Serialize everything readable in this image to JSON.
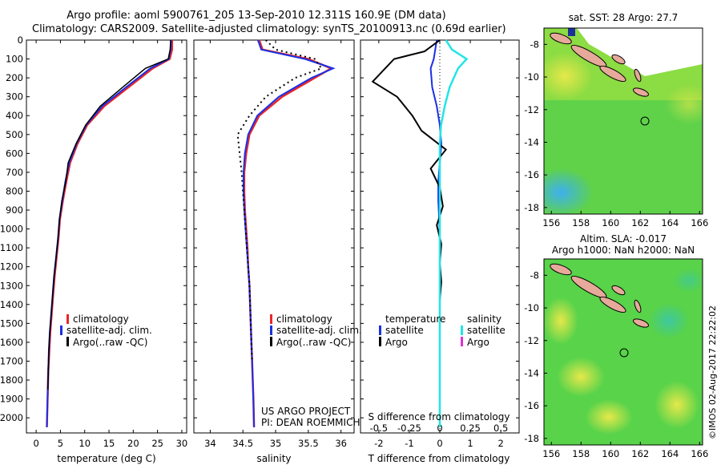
{
  "title_line1": "Argo profile: aoml 5900761_205 13-Sep-2010 12.311S 160.9E (DM data)",
  "title_line2": "Climatology: CARS2009. Satellite-adjusted climatology: synTS_20100913.nc (0.69d earlier)",
  "colors": {
    "climatology": "#e8262b",
    "satellite": "#1a2fe8",
    "argo": "#000000",
    "sal_satellite": "#22e5e5",
    "sal_argo": "#e032d0"
  },
  "depth_ticks": [
    "0",
    "100",
    "200",
    "300",
    "400",
    "500",
    "600",
    "700",
    "800",
    "900",
    "1000",
    "1100",
    "1200",
    "1300",
    "1400",
    "1500",
    "1600",
    "1700",
    "1800",
    "1900",
    "2000"
  ],
  "panel1": {
    "xlabel": "temperature (deg C)",
    "xticks": [
      "0",
      "5",
      "10",
      "15",
      "20",
      "25",
      "30"
    ],
    "legend": [
      "climatology",
      "satellite-adj. clim.",
      "Argo(..raw -QC)"
    ]
  },
  "panel2": {
    "xlabel": "salinity",
    "xticks": [
      "34",
      "34.5",
      "35",
      "35.5",
      "36"
    ],
    "legend": [
      "climatology",
      "satellite-adj. clim.",
      "Argo(..raw -QC)"
    ],
    "note1": "US ARGO PROJECT",
    "note2": "PI: DEAN ROEMMICH"
  },
  "panel3": {
    "xlabel": "T difference from climatology",
    "top_label": "S difference from climatology",
    "xticks": [
      "-2",
      "-1",
      "0",
      "1",
      "2"
    ],
    "sticks": [
      "-0.5",
      "-0.25",
      "0",
      "0.25",
      "0.5"
    ],
    "legend_t_head": "temperature",
    "legend_s_head": "salinity",
    "legend_t": [
      "satellite",
      "Argo"
    ],
    "legend_s": [
      "satellite",
      "Argo"
    ]
  },
  "map1": {
    "title": "sat. SST: 28 Argo: 27.7"
  },
  "map2": {
    "title1": "Altim. SLA: -0.017",
    "title2": "Argo h1000: NaN h2000: NaN"
  },
  "map_xticks": [
    "156",
    "158",
    "160",
    "162",
    "164",
    "166"
  ],
  "map_yticks": [
    "-8",
    "-10",
    "-12",
    "-14",
    "-16",
    "-18"
  ],
  "footer": "©IMOS 02-Aug-2017 22:22:02",
  "chart_data": [
    {
      "type": "line",
      "xlabel": "temperature (deg C)",
      "ylabel": "",
      "xlim": [
        -2,
        31
      ],
      "ylim": [
        2080,
        0
      ],
      "series": [
        {
          "name": "climatology",
          "x": [
            28,
            28,
            27.5,
            24,
            19,
            14,
            10.5,
            8.5,
            7,
            6.2,
            5.5,
            4.9,
            4.6,
            4.2,
            3.8,
            3.5,
            3.2,
            2.9,
            2.7,
            2.5,
            2.4,
            2.3,
            2.2
          ],
          "y": [
            0,
            50,
            100,
            150,
            250,
            350,
            450,
            550,
            650,
            750,
            850,
            950,
            1050,
            1150,
            1250,
            1350,
            1450,
            1550,
            1650,
            1750,
            1850,
            1950,
            2050
          ]
        },
        {
          "name": "satellite-adj. clim.",
          "x": [
            27.8,
            27.7,
            27.3,
            23.5,
            18.5,
            13.6,
            10.3,
            8.3,
            6.8,
            6.0,
            5.4,
            4.8,
            4.5,
            4.1,
            3.7,
            3.4,
            3.1,
            2.8,
            2.6,
            2.5,
            2.4,
            2.3,
            2.2
          ],
          "y": [
            0,
            50,
            100,
            150,
            250,
            350,
            450,
            550,
            650,
            750,
            850,
            950,
            1050,
            1150,
            1250,
            1350,
            1450,
            1550,
            1650,
            1750,
            1850,
            1950,
            2050
          ]
        },
        {
          "name": "Argo(..raw -QC)",
          "x": [
            27.7,
            27.6,
            27.2,
            22.5,
            17.8,
            13.2,
            10.2,
            8.2,
            6.6,
            6.1,
            5.3,
            4.8,
            4.5,
            4.1,
            3.7,
            3.4,
            3.1,
            2.8,
            2.6,
            2.5,
            2.4
          ],
          "y": [
            0,
            50,
            100,
            150,
            250,
            350,
            450,
            550,
            650,
            750,
            850,
            950,
            1050,
            1150,
            1250,
            1350,
            1450,
            1550,
            1650,
            1750,
            1850
          ]
        }
      ]
    },
    {
      "type": "line",
      "xlabel": "salinity",
      "ylabel": "",
      "xlim": [
        33.75,
        36.2
      ],
      "ylim": [
        2080,
        0
      ],
      "series": [
        {
          "name": "climatology",
          "x": [
            34.75,
            34.8,
            35.5,
            35.85,
            35.6,
            35.1,
            34.75,
            34.6,
            34.55,
            34.52,
            34.52,
            34.53,
            34.55,
            34.57,
            34.58,
            34.6,
            34.61,
            34.62,
            34.63,
            34.64,
            34.65,
            34.66,
            34.67
          ],
          "y": [
            0,
            50,
            100,
            150,
            200,
            300,
            400,
            500,
            600,
            700,
            800,
            900,
            1000,
            1100,
            1200,
            1300,
            1400,
            1500,
            1600,
            1700,
            1800,
            1900,
            2050
          ]
        },
        {
          "name": "satellite-adj. clim.",
          "x": [
            34.73,
            34.78,
            35.45,
            35.88,
            35.55,
            35.05,
            34.72,
            34.58,
            34.53,
            34.51,
            34.51,
            34.52,
            34.54,
            34.56,
            34.58,
            34.6,
            34.61,
            34.62,
            34.63,
            34.64,
            34.65,
            34.66,
            34.67
          ],
          "y": [
            0,
            50,
            100,
            150,
            200,
            300,
            400,
            500,
            600,
            700,
            800,
            900,
            1000,
            1100,
            1200,
            1300,
            1400,
            1500,
            1600,
            1700,
            1800,
            1900,
            2050
          ]
        },
        {
          "name": "Argo(..raw -QC)",
          "x": [
            34.85,
            35.0,
            35.6,
            35.7,
            35.3,
            34.85,
            34.6,
            34.42,
            34.45,
            34.48,
            34.5,
            34.52,
            34.54,
            34.56,
            34.58,
            34.6,
            34.61,
            34.62,
            34.63,
            34.64
          ],
          "y": [
            0,
            50,
            100,
            150,
            200,
            300,
            400,
            500,
            600,
            700,
            800,
            900,
            1000,
            1100,
            1200,
            1300,
            1400,
            1500,
            1600,
            1700
          ]
        }
      ]
    },
    {
      "type": "line",
      "xlabel": "T difference from climatology",
      "ylabel": "",
      "xlim": [
        -2.6,
        2.6
      ],
      "ylim": [
        2080,
        0
      ],
      "series": [
        {
          "name": "satellite",
          "x": [
            -0.1,
            -0.15,
            -0.2,
            -0.3,
            -0.25,
            -0.1,
            0,
            0.05,
            0,
            -0.05,
            -0.05,
            -0.02,
            0,
            0,
            0,
            0,
            0,
            0,
            0,
            0,
            0
          ],
          "y": [
            0,
            50,
            100,
            150,
            250,
            350,
            450,
            550,
            650,
            750,
            850,
            950,
            1050,
            1150,
            1250,
            1350,
            1450,
            1550,
            1650,
            1750,
            2050
          ]
        },
        {
          "name": "Argo",
          "x": [
            0,
            -0.5,
            -1.5,
            -2.2,
            -1.4,
            -0.9,
            -0.6,
            0.2,
            -0.3,
            0,
            0.1,
            -0.1,
            0.05,
            0,
            0.05,
            0,
            0,
            0
          ],
          "y": [
            0,
            60,
            100,
            220,
            300,
            400,
            480,
            580,
            680,
            780,
            880,
            980,
            1080,
            1180,
            1280,
            1380,
            1480,
            1580
          ]
        }
      ]
    },
    {
      "type": "line",
      "xlabel": "S difference from climatology",
      "ylabel": "",
      "xlim": [
        -0.65,
        0.65
      ],
      "ylim": [
        2080,
        0
      ],
      "series": [
        {
          "name": "satellite",
          "x": [
            0.05,
            0.1,
            0.22,
            0.15,
            0.08,
            0.04,
            0.01,
            0,
            0,
            0,
            0,
            0,
            0,
            0,
            0,
            0,
            0,
            0
          ],
          "y": [
            0,
            50,
            100,
            150,
            250,
            350,
            450,
            550,
            650,
            750,
            900,
            1100,
            1300,
            1500,
            1700,
            1900,
            2000,
            2050
          ]
        },
        {
          "name": "Argo",
          "x": [],
          "y": []
        }
      ]
    }
  ]
}
